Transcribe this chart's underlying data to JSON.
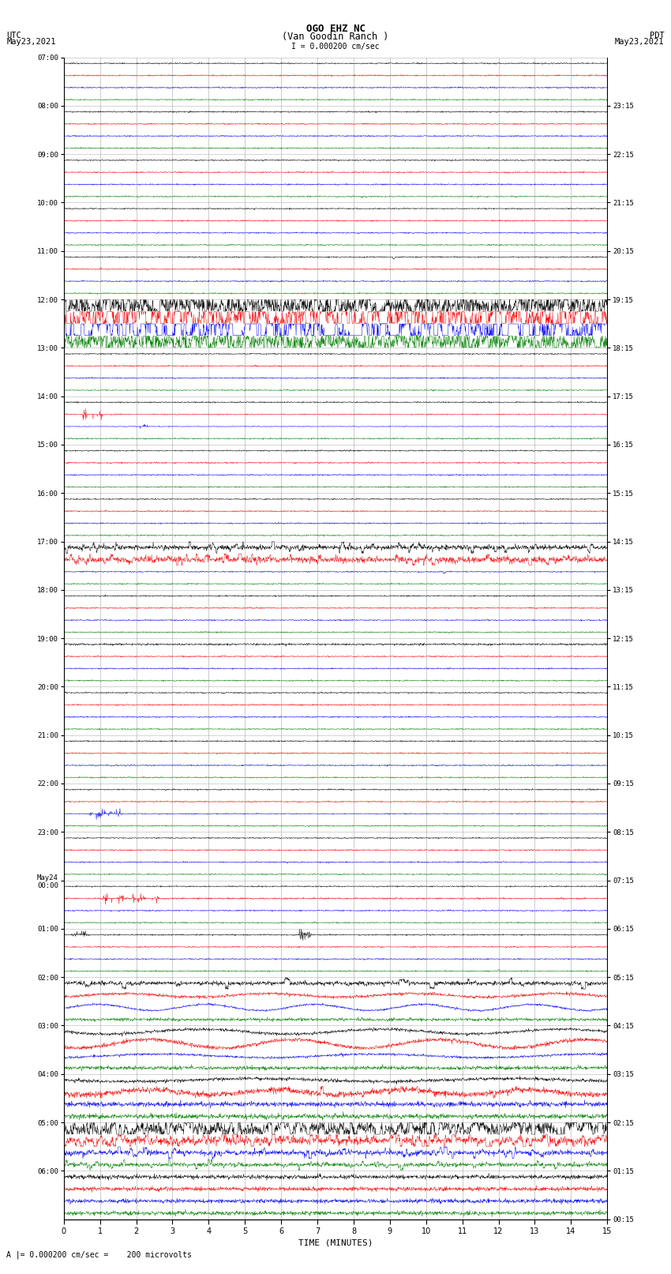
{
  "title_line1": "OGO EHZ NC",
  "title_line2": "(Van Goodin Ranch )",
  "title_scale": "I = 0.000200 cm/sec",
  "left_label_line1": "UTC",
  "left_label_line2": "May23,2021",
  "right_label_line1": "PDT",
  "right_label_line2": "May23,2021",
  "xlabel": "TIME (MINUTES)",
  "bottom_label": "A |= 0.000200 cm/sec =    200 microvolts",
  "xlim": [
    0,
    15
  ],
  "xticks": [
    0,
    1,
    2,
    3,
    4,
    5,
    6,
    7,
    8,
    9,
    10,
    11,
    12,
    13,
    14,
    15
  ],
  "bg_color": "#ffffff",
  "grid_color_v": "#888888",
  "grid_color_h": "#cccccc",
  "trace_colors": [
    "black",
    "red",
    "blue",
    "green"
  ],
  "utc_hour_labels": [
    "07:00",
    "08:00",
    "09:00",
    "10:00",
    "11:00",
    "12:00",
    "13:00",
    "14:00",
    "15:00",
    "16:00",
    "17:00",
    "18:00",
    "19:00",
    "20:00",
    "21:00",
    "22:00",
    "23:00",
    "May24\n00:00",
    "01:00",
    "02:00",
    "03:00",
    "04:00",
    "05:00",
    "06:00"
  ],
  "pdt_hour_labels": [
    "00:15",
    "01:15",
    "02:15",
    "03:15",
    "04:15",
    "05:15",
    "06:15",
    "07:15",
    "08:15",
    "09:15",
    "10:15",
    "11:15",
    "12:15",
    "13:15",
    "14:15",
    "15:15",
    "16:15",
    "17:15",
    "18:15",
    "19:15",
    "20:15",
    "21:15",
    "22:15",
    "23:15"
  ],
  "num_hours": 24,
  "traces_per_hour": 4,
  "figsize": [
    8.5,
    16.13
  ],
  "dpi": 100
}
